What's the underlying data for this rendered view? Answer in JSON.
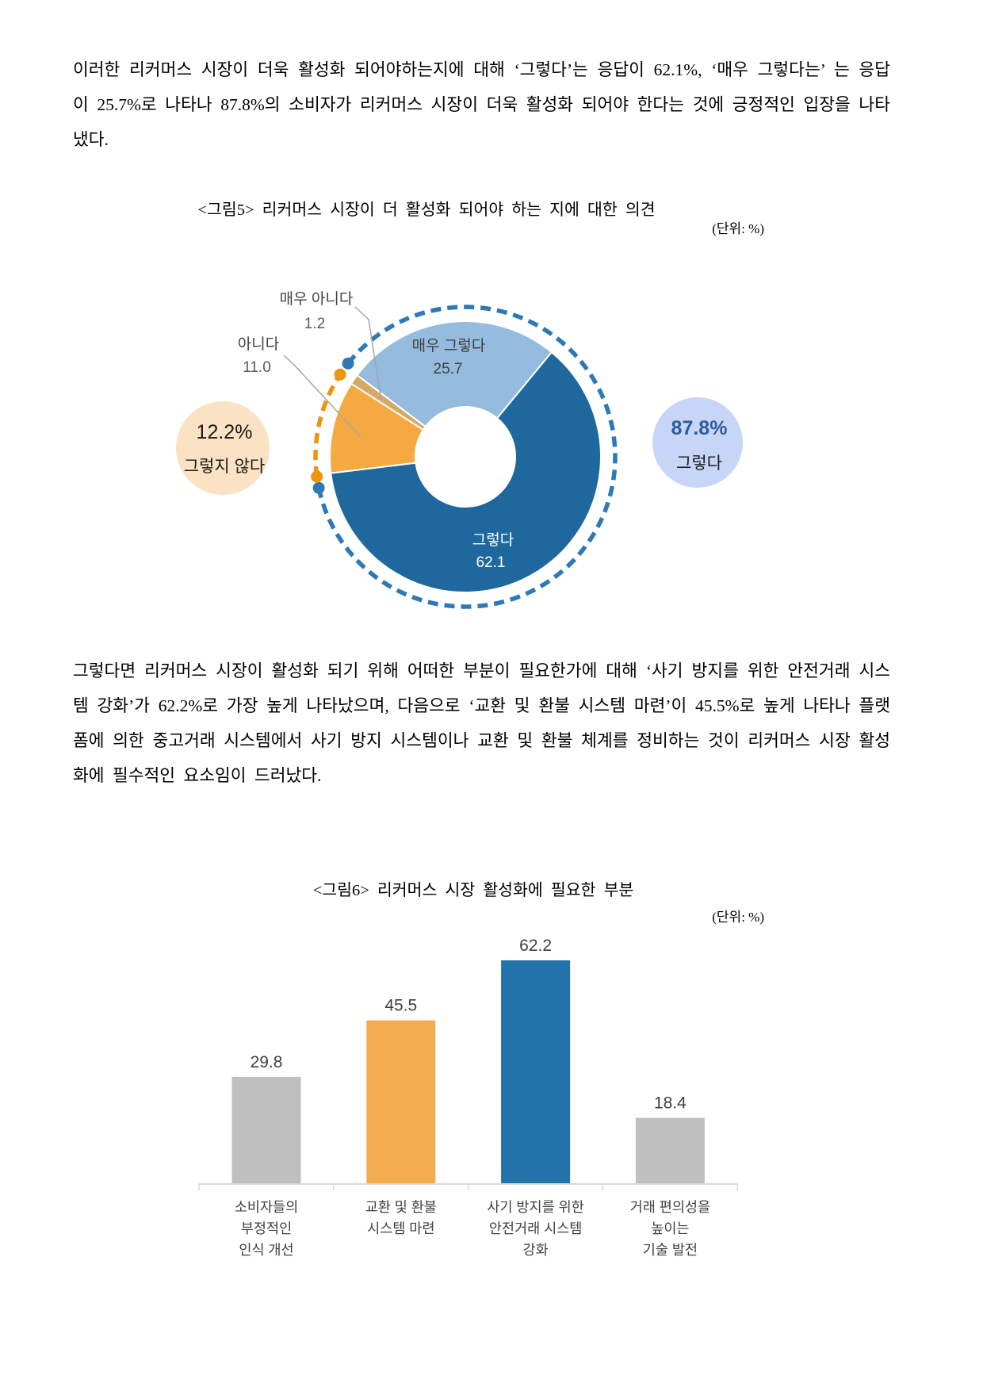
{
  "document": {
    "paragraphs": [
      {
        "text": "이러한 리커머스 시장이 더욱 활성화 되어야하는지에 대해 ‘그렇다’는 응답이 62.1%, ‘매우 그렇다는’ 는 응답이 25.7%로 나타나 87.8%의 소비자가 리커머스 시장이 더욱 활성화 되어야 한다는 것에 긍정적인 입장을 나타냈다."
      },
      {
        "text": "그렇다면 리커머스 시장이 활성화 되기 위해 어떠한 부분이 필요한가에 대해 ‘사기 방지를 위한 안전거래 시스템 강화’가 62.2%로 가장 높게 나타났으며, 다음으로 ‘교환 및 환불 시스템 마련’이 45.5%로 높게 나타나 플랫폼에 의한 중고거래 시스템에서 사기 방지 시스템이나 교환 및 환불 체계를 정비하는 것이 리커머스 시장 활성화에 필수적인 요소임이 드러났다."
      }
    ]
  },
  "chart_data": [
    {
      "type": "pie",
      "variant": "donut",
      "title": "<그림5> 리커머스 시장이 더 활성화 되어야 하는 지에 대한 의견",
      "unit": "(단위: %)",
      "labels": [
        "매우 그렇다",
        "그렇다",
        "아니다",
        "매우 아니다"
      ],
      "values": [
        25.7,
        62.1,
        11.0,
        1.2
      ],
      "colors": [
        "#95BBDF",
        "#1F689E",
        "#F5AA41",
        "#D7A763"
      ],
      "start_angle_cw_from_top": -53,
      "legend": false,
      "callouts": [
        {
          "id": "positive",
          "pct": "87.8%",
          "label": "그렇다",
          "side": "right",
          "bubble_color": "#C7D5F7",
          "pct_color": "#2F5B9D",
          "arc_color": "#2E78B5"
        },
        {
          "id": "negative",
          "pct": "12.2%",
          "label": "그렇지 않다",
          "side": "left",
          "bubble_color": "#FAE2C2",
          "pct_color": "#1A1A1A",
          "arc_color": "#EE9410"
        }
      ]
    },
    {
      "type": "bar",
      "title": "<그림6> 리커머스 시장 활성화에 필요한 부분",
      "unit": "(단위: %)",
      "categories": [
        "소비자들의 부정적인 인식 개선",
        "교환 및 환불 시스템 마련",
        "사기 방지를 위한 안전거래 시스템 강화",
        "거래 편의성을 높이는 기술 발전"
      ],
      "category_lines": [
        [
          "소비자들의",
          "부정적인",
          "인식 개선"
        ],
        [
          "교환 및 환불",
          "시스템 마련"
        ],
        [
          "사기 방지를 위한",
          "안전거래 시스템",
          "강화"
        ],
        [
          "거래 편의성을",
          "높이는",
          "기술 발전"
        ]
      ],
      "values": [
        29.8,
        45.5,
        62.2,
        18.4
      ],
      "colors": [
        "#BFBFBF",
        "#F3AC4E",
        "#2273A9",
        "#BFBFBF"
      ],
      "ylim": [
        0,
        70
      ],
      "grid": false,
      "legend": false
    }
  ]
}
